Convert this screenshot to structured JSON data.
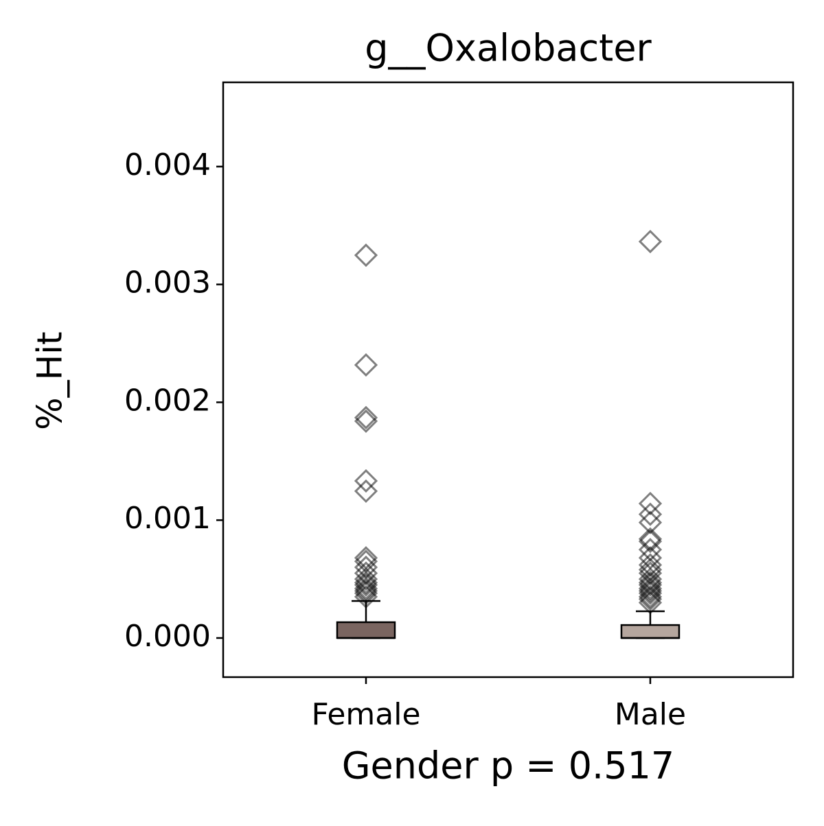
{
  "chart_data": {
    "type": "box",
    "title": "g__Oxalobacter",
    "xlabel": "Gender p = 0.517",
    "ylabel": "%_Hit",
    "categories": [
      "Female",
      "Male"
    ],
    "boxes": [
      {
        "color": "#7a6560",
        "whisker_low": 0,
        "q1": 0,
        "median": 0,
        "q3": 0.000134,
        "whisker_high": 0.000314,
        "outliers": [
          0.003248,
          0.002317,
          0.00187,
          0.00184,
          0.001333,
          0.001246,
          0.00068,
          0.00065,
          0.0006,
          0.00055,
          0.0005,
          0.00047,
          0.00045,
          0.00042,
          0.0004,
          0.00038,
          0.00035
        ]
      },
      {
        "color": "#b5a69e",
        "whisker_low": 0,
        "q1": 0,
        "median": 0,
        "q3": 0.00011,
        "whisker_high": 0.000227,
        "outliers": [
          0.003364,
          0.001141,
          0.00105,
          0.00098,
          0.00084,
          0.00082,
          0.00075,
          0.00068,
          0.00062,
          0.00058,
          0.00055,
          0.0005,
          0.00047,
          0.00045,
          0.00042,
          0.0004,
          0.00038,
          0.00035,
          0.00033,
          0.0003
        ]
      }
    ],
    "ylim": [
      -0.000332,
      0.004715
    ],
    "yticks": [
      {
        "value": 0,
        "label": "0.000"
      },
      {
        "value": 0.001,
        "label": "0.001"
      },
      {
        "value": 0.002,
        "label": "0.002"
      },
      {
        "value": 0.003,
        "label": "0.003"
      },
      {
        "value": 0.004,
        "label": "0.004"
      }
    ],
    "outlier_color": "#000000"
  }
}
